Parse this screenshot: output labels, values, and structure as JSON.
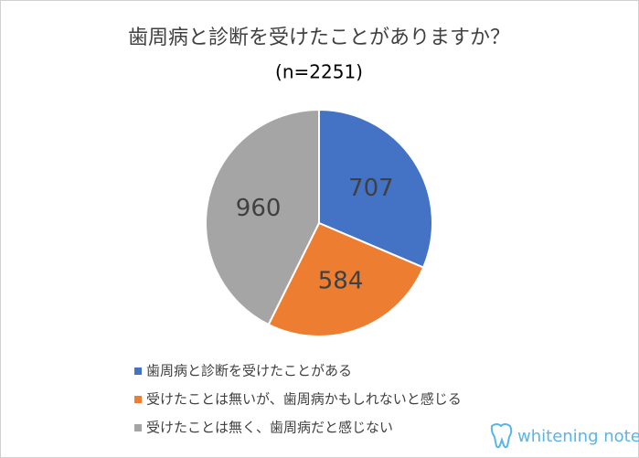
{
  "chart_data": {
    "type": "pie",
    "title": "歯周病と診断を受けたことがありますか？",
    "subtitle": "(n=2251)",
    "categories": [
      "歯周病と診断を受けたことがある",
      "受けたことは無いが、歯周病かもしれないと感じる",
      "受けたことは無く、歯周病だと感じない"
    ],
    "values": [
      707,
      584,
      960
    ],
    "colors": [
      "#4472c4",
      "#ed7d31",
      "#a5a5a5"
    ],
    "legend": "bottom",
    "watermark": "whitening note"
  }
}
